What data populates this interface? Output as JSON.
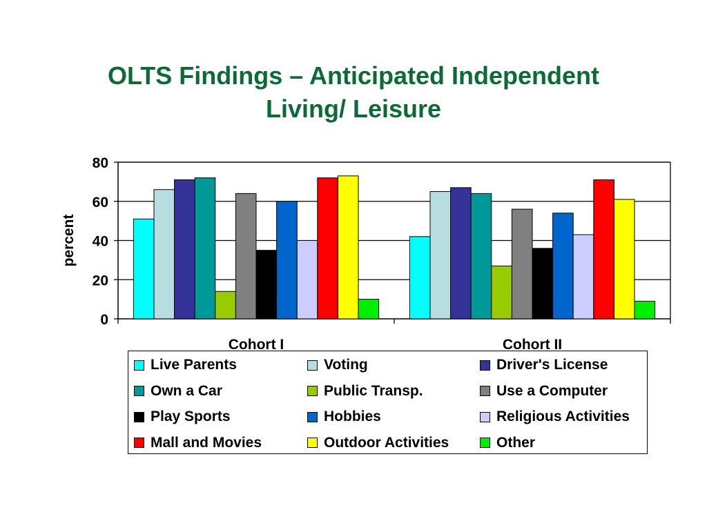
{
  "title": {
    "line1": "OLTS Findings – Anticipated Independent",
    "line2": "Living/ Leisure"
  },
  "chart_data": {
    "type": "bar",
    "title": "OLTS Findings – Anticipated Independent Living/ Leisure",
    "xlabel": "",
    "ylabel": "percent",
    "ylim": [
      0,
      80
    ],
    "yticks": [
      0,
      20,
      40,
      60,
      80
    ],
    "grid": true,
    "legend_position": "bottom",
    "categories": [
      "Cohort I",
      "Cohort II"
    ],
    "series": [
      {
        "name": "Live Parents",
        "color": "#00ffff",
        "values": [
          51,
          42
        ]
      },
      {
        "name": "Voting",
        "color": "#b8dde0",
        "values": [
          66,
          65
        ]
      },
      {
        "name": "Driver's License",
        "color": "#333399",
        "values": [
          71,
          67
        ]
      },
      {
        "name": "Own a Car",
        "color": "#009999",
        "values": [
          72,
          64
        ]
      },
      {
        "name": "Public Transp.",
        "color": "#99cc00",
        "values": [
          14,
          27
        ]
      },
      {
        "name": "Use a Computer",
        "color": "#808080",
        "values": [
          64,
          56
        ]
      },
      {
        "name": "Play Sports",
        "color": "#000000",
        "values": [
          35,
          36
        ]
      },
      {
        "name": "Hobbies",
        "color": "#0066cc",
        "values": [
          60,
          54
        ]
      },
      {
        "name": "Religious Activities",
        "color": "#ccccff",
        "values": [
          40,
          43
        ]
      },
      {
        "name": "Mall and Movies",
        "color": "#ff0000",
        "values": [
          72,
          71
        ]
      },
      {
        "name": "Outdoor Activities",
        "color": "#ffff00",
        "values": [
          73,
          61
        ]
      },
      {
        "name": "Other",
        "color": "#00ee00",
        "values": [
          10,
          9
        ]
      }
    ]
  }
}
